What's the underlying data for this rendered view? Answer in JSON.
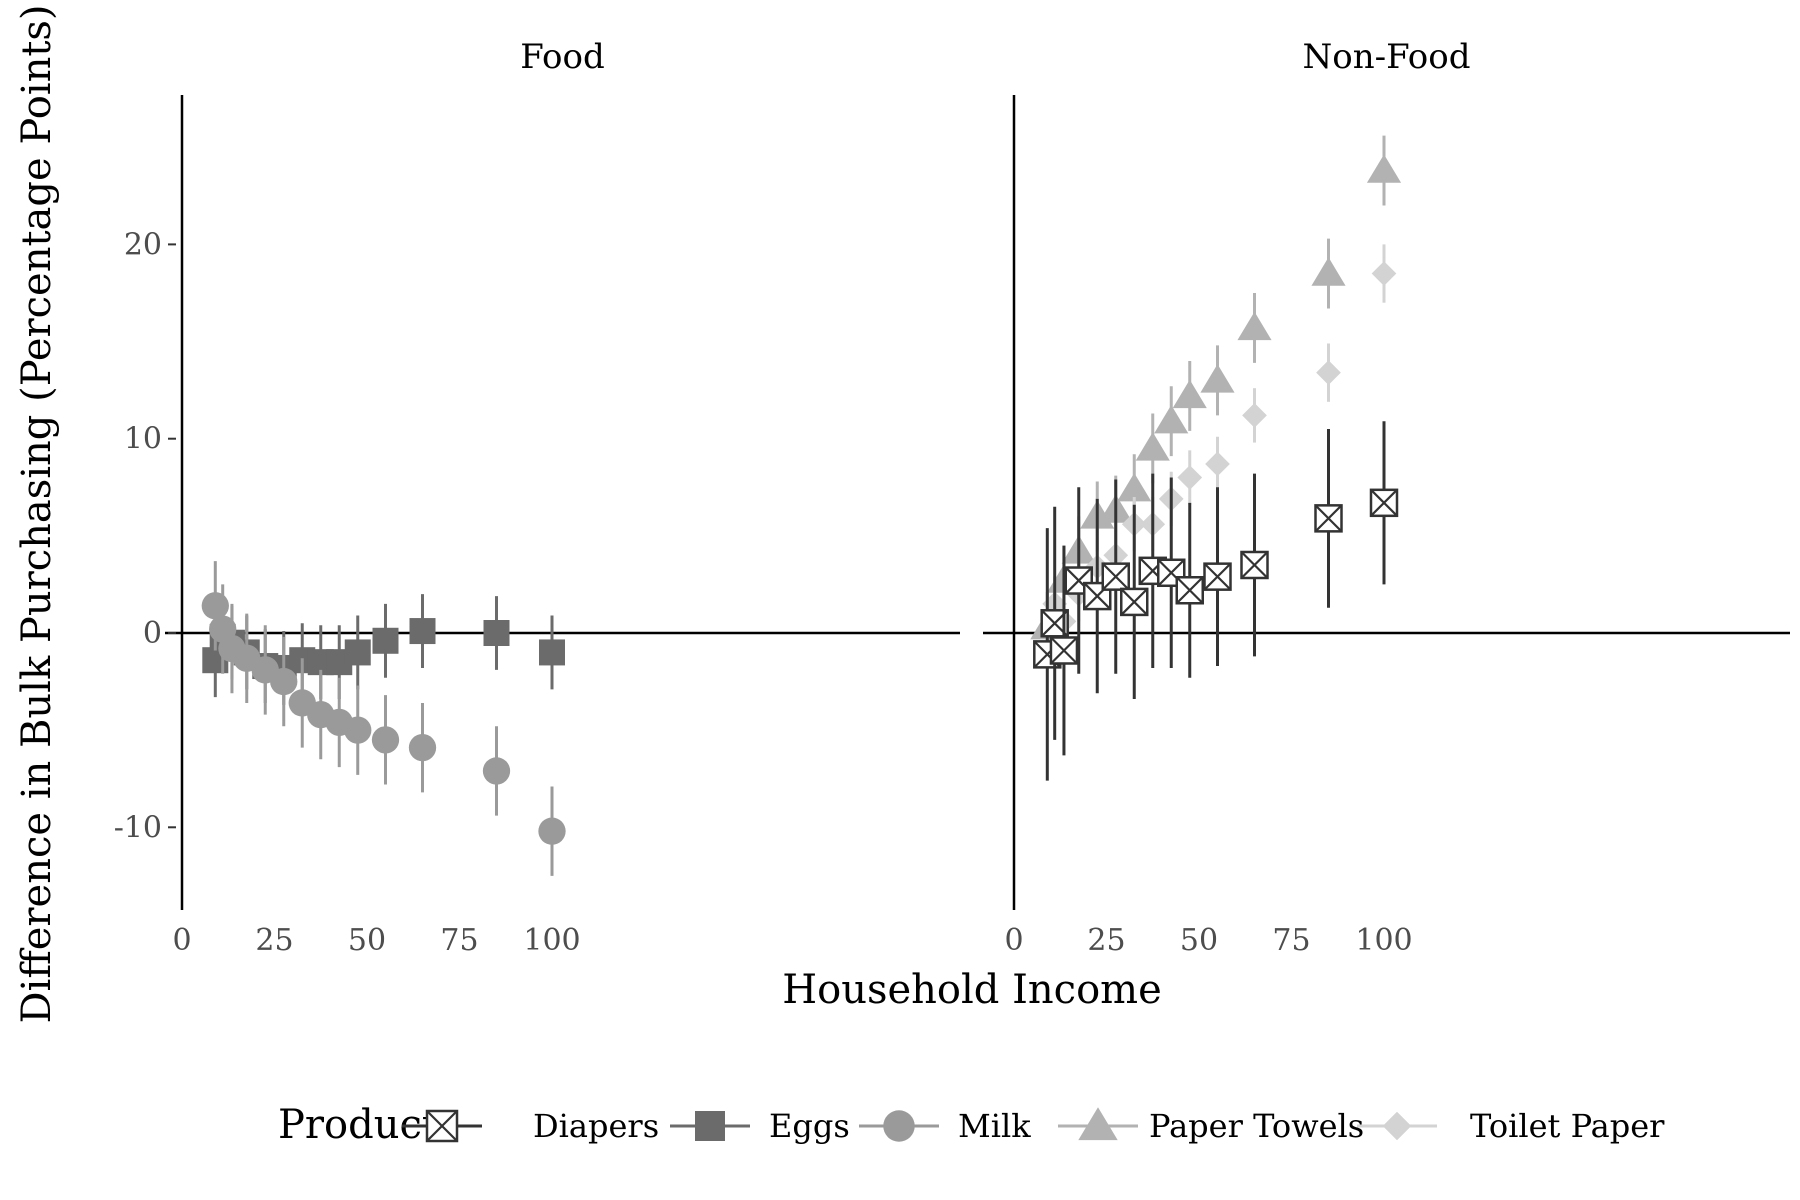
{
  "chart_data": {
    "type": "scatter",
    "ylabel": "Difference in Bulk Purchasing (Percentage Points)",
    "xlabel": "Household Income",
    "xlim": [
      0,
      105
    ],
    "ylim": [
      -14.5,
      27.5
    ],
    "x_ticks": [
      0,
      25,
      50,
      75,
      100
    ],
    "y_ticks": [
      -10,
      0,
      10,
      20
    ],
    "x_tick_labels": [
      "0",
      "25",
      "50",
      "75",
      "100"
    ],
    "y_tick_labels": [
      "-10",
      "0",
      "10",
      "20"
    ],
    "grid": false,
    "reference_line_y": 0,
    "legend": {
      "title": "Product",
      "position": "bottom"
    },
    "panels": [
      {
        "title": "Food",
        "series": [
          {
            "name": "Eggs",
            "shape": "square",
            "color": "#6b6b6b",
            "points": [
              {
                "x": 9,
                "y": -1.4,
                "lo": -3.3,
                "hi": 0.6
              },
              {
                "x": 11,
                "y": -0.2,
                "lo": -2.0,
                "hi": 1.8
              },
              {
                "x": 13.5,
                "y": -0.5,
                "lo": -2.4,
                "hi": 1.4
              },
              {
                "x": 17.5,
                "y": -1.0,
                "lo": -2.9,
                "hi": 0.9
              },
              {
                "x": 22.5,
                "y": -1.7,
                "lo": -3.6,
                "hi": 0.2
              },
              {
                "x": 27.5,
                "y": -1.8,
                "lo": -3.7,
                "hi": 0.1
              },
              {
                "x": 32.5,
                "y": -1.4,
                "lo": -3.3,
                "hi": 0.5
              },
              {
                "x": 37.5,
                "y": -1.5,
                "lo": -3.4,
                "hi": 0.4
              },
              {
                "x": 42.5,
                "y": -1.5,
                "lo": -3.4,
                "hi": 0.4
              },
              {
                "x": 47.5,
                "y": -1.0,
                "lo": -2.9,
                "hi": 0.9
              },
              {
                "x": 55,
                "y": -0.4,
                "lo": -2.3,
                "hi": 1.5
              },
              {
                "x": 65,
                "y": 0.1,
                "lo": -1.8,
                "hi": 2.0
              },
              {
                "x": 85,
                "y": 0.0,
                "lo": -1.9,
                "hi": 1.9
              },
              {
                "x": 100,
                "y": -1.0,
                "lo": -2.9,
                "hi": 0.9
              }
            ]
          },
          {
            "name": "Milk",
            "shape": "circle",
            "color": "#9a9a9a",
            "points": [
              {
                "x": 9,
                "y": 1.4,
                "lo": -0.9,
                "hi": 3.7
              },
              {
                "x": 11,
                "y": 0.2,
                "lo": -2.1,
                "hi": 2.5
              },
              {
                "x": 13.5,
                "y": -0.8,
                "lo": -3.1,
                "hi": 1.5
              },
              {
                "x": 17.5,
                "y": -1.3,
                "lo": -3.6,
                "hi": 1.0
              },
              {
                "x": 22.5,
                "y": -1.9,
                "lo": -4.2,
                "hi": 0.4
              },
              {
                "x": 27.5,
                "y": -2.5,
                "lo": -4.8,
                "hi": -0.2
              },
              {
                "x": 32.5,
                "y": -3.6,
                "lo": -5.9,
                "hi": -1.3
              },
              {
                "x": 37.5,
                "y": -4.2,
                "lo": -6.5,
                "hi": -1.9
              },
              {
                "x": 42.5,
                "y": -4.6,
                "lo": -6.9,
                "hi": -2.3
              },
              {
                "x": 47.5,
                "y": -5.0,
                "lo": -7.3,
                "hi": -2.7
              },
              {
                "x": 55,
                "y": -5.5,
                "lo": -7.8,
                "hi": -3.2
              },
              {
                "x": 65,
                "y": -5.9,
                "lo": -8.2,
                "hi": -3.6
              },
              {
                "x": 85,
                "y": -7.1,
                "lo": -9.4,
                "hi": -4.8
              },
              {
                "x": 100,
                "y": -10.2,
                "lo": -12.5,
                "hi": -7.9
              }
            ]
          }
        ]
      },
      {
        "title": "Non-Food",
        "series": [
          {
            "name": "Paper Towels",
            "shape": "triangle",
            "color": "#b2b2b2",
            "points": [
              {
                "x": 9,
                "y": 0.3,
                "lo": -1.5,
                "hi": 2.1
              },
              {
                "x": 13.5,
                "y": 2.7,
                "lo": 0.9,
                "hi": 4.5
              },
              {
                "x": 17.5,
                "y": 4.2,
                "lo": 2.4,
                "hi": 6.0
              },
              {
                "x": 22.5,
                "y": 6.0,
                "lo": 4.2,
                "hi": 7.8
              },
              {
                "x": 27.5,
                "y": 6.3,
                "lo": 4.5,
                "hi": 8.1
              },
              {
                "x": 32.5,
                "y": 7.4,
                "lo": 5.6,
                "hi": 9.2
              },
              {
                "x": 37.5,
                "y": 9.5,
                "lo": 7.7,
                "hi": 11.3
              },
              {
                "x": 42.5,
                "y": 10.9,
                "lo": 9.1,
                "hi": 12.7
              },
              {
                "x": 47.5,
                "y": 12.2,
                "lo": 10.4,
                "hi": 14.0
              },
              {
                "x": 55,
                "y": 13.0,
                "lo": 11.2,
                "hi": 14.8
              },
              {
                "x": 65,
                "y": 15.7,
                "lo": 13.9,
                "hi": 17.5
              },
              {
                "x": 85,
                "y": 18.5,
                "lo": 16.7,
                "hi": 20.3
              },
              {
                "x": 100,
                "y": 23.8,
                "lo": 22.0,
                "hi": 25.6
              }
            ]
          },
          {
            "name": "Toilet Paper",
            "shape": "diamond",
            "color": "#d3d3d3",
            "points": [
              {
                "x": 11,
                "y": 1.5,
                "lo": 0.1,
                "hi": 2.9
              },
              {
                "x": 13.5,
                "y": 0.6,
                "lo": -0.8,
                "hi": 2.0
              },
              {
                "x": 17.5,
                "y": 2.0,
                "lo": 0.6,
                "hi": 3.4
              },
              {
                "x": 22.5,
                "y": 3.4,
                "lo": 2.0,
                "hi": 4.8
              },
              {
                "x": 27.5,
                "y": 4.0,
                "lo": 2.6,
                "hi": 5.4
              },
              {
                "x": 32.5,
                "y": 5.6,
                "lo": 4.2,
                "hi": 7.0
              },
              {
                "x": 37.5,
                "y": 5.6,
                "lo": 4.2,
                "hi": 7.0
              },
              {
                "x": 42.5,
                "y": 6.9,
                "lo": 5.5,
                "hi": 8.3
              },
              {
                "x": 47.5,
                "y": 8.0,
                "lo": 6.6,
                "hi": 9.4
              },
              {
                "x": 55,
                "y": 8.7,
                "lo": 7.3,
                "hi": 10.1
              },
              {
                "x": 65,
                "y": 11.2,
                "lo": 9.8,
                "hi": 12.6
              },
              {
                "x": 85,
                "y": 13.4,
                "lo": 11.9,
                "hi": 14.9
              },
              {
                "x": 100,
                "y": 18.5,
                "lo": 17.0,
                "hi": 20.0
              }
            ]
          },
          {
            "name": "Diapers",
            "shape": "square-x",
            "color": "#333333",
            "points": [
              {
                "x": 9,
                "y": -1.1,
                "lo": -7.6,
                "hi": 5.4
              },
              {
                "x": 11,
                "y": 0.5,
                "lo": -5.5,
                "hi": 6.5
              },
              {
                "x": 13.5,
                "y": -0.9,
                "lo": -6.3,
                "hi": 4.5
              },
              {
                "x": 17.5,
                "y": 2.7,
                "lo": -2.1,
                "hi": 7.5
              },
              {
                "x": 22.5,
                "y": 1.9,
                "lo": -3.1,
                "hi": 6.9
              },
              {
                "x": 27.5,
                "y": 2.9,
                "lo": -2.1,
                "hi": 7.9
              },
              {
                "x": 32.5,
                "y": 1.6,
                "lo": -3.4,
                "hi": 6.6
              },
              {
                "x": 37.5,
                "y": 3.2,
                "lo": -1.8,
                "hi": 8.2
              },
              {
                "x": 42.5,
                "y": 3.1,
                "lo": -1.8,
                "hi": 8.0
              },
              {
                "x": 47.5,
                "y": 2.2,
                "lo": -2.3,
                "hi": 6.7
              },
              {
                "x": 55,
                "y": 2.9,
                "lo": -1.7,
                "hi": 7.5
              },
              {
                "x": 65,
                "y": 3.5,
                "lo": -1.2,
                "hi": 8.2
              },
              {
                "x": 85,
                "y": 5.9,
                "lo": 1.3,
                "hi": 10.5
              },
              {
                "x": 100,
                "y": 6.7,
                "lo": 2.5,
                "hi": 10.9
              }
            ]
          }
        ]
      }
    ],
    "legend_items": [
      {
        "name": "Diapers",
        "shape": "square-x",
        "color": "#333333"
      },
      {
        "name": "Eggs",
        "shape": "square",
        "color": "#6b6b6b"
      },
      {
        "name": "Milk",
        "shape": "circle",
        "color": "#9a9a9a"
      },
      {
        "name": "Paper Towels",
        "shape": "triangle",
        "color": "#b2b2b2"
      },
      {
        "name": "Toilet Paper",
        "shape": "diamond",
        "color": "#d3d3d3"
      }
    ]
  }
}
